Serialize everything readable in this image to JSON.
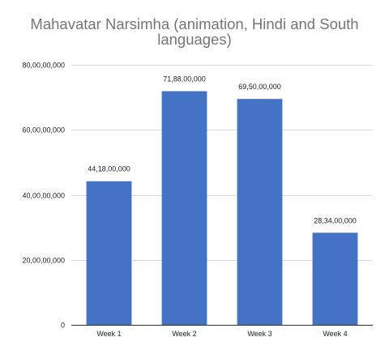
{
  "chart_data": {
    "type": "bar",
    "title": "Mahavatar Narsimha (animation, Hindi and South languages)",
    "title_lines": [
      "Mahavatar Narsimha (animation, Hindi and South",
      "languages)"
    ],
    "categories": [
      "Week 1",
      "Week 2",
      "Week 3",
      "Week 4"
    ],
    "values": [
      441800000,
      718800000,
      695000000,
      283400000
    ],
    "data_labels": [
      "44,18,00,000",
      "71,88,00,000",
      "69,50,00,000",
      "28,34,00,000"
    ],
    "y_ticks": [
      0,
      200000000,
      400000000,
      600000000,
      800000000
    ],
    "y_tick_labels": [
      "0",
      "20,00,00,000",
      "40,00,00,000",
      "60,00,00,000",
      "80,00,00,000"
    ],
    "ylim": [
      0,
      800000000
    ],
    "xlabel": "",
    "ylabel": "",
    "grid": true,
    "legend": "none",
    "bar_color": "#4472c4",
    "grid_color": "#d9d9d9",
    "axis_color": "#333333"
  }
}
